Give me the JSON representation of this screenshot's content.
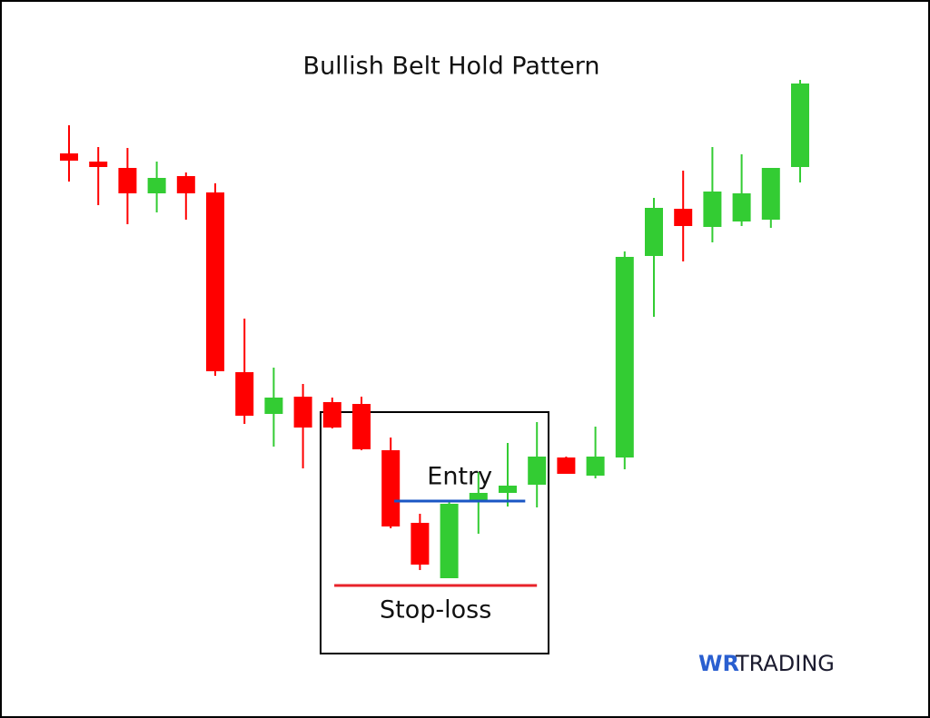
{
  "chart_data": {
    "type": "candlestick",
    "title": "Bullish Belt Hold Pattern",
    "categories": [
      null,
      null,
      null,
      null,
      null,
      null,
      null,
      null,
      null,
      null,
      null,
      null,
      null,
      null,
      null,
      null,
      null,
      null,
      null,
      null,
      null,
      null,
      null,
      null,
      null,
      null
    ],
    "series": [
      {
        "name": "open",
        "values": [
          622,
          613,
          606,
          578,
          597,
          579,
          381,
          335,
          354,
          348,
          346,
          295,
          215,
          154,
          240,
          248,
          257,
          287,
          267,
          287,
          509,
          561,
          541,
          547,
          549,
          607
        ]
      },
      {
        "name": "high",
        "values": [
          653,
          629,
          628,
          613,
          601,
          589,
          440,
          386,
          368,
          353,
          354,
          309,
          225,
          238,
          271,
          303,
          326,
          288,
          321,
          514,
          573,
          603,
          629,
          621,
          606,
          703
        ]
      },
      {
        "name": "low",
        "values": [
          591,
          565,
          544,
          557,
          549,
          377,
          324,
          299,
          275,
          319,
          295,
          209,
          163,
          154,
          203,
          233,
          232,
          269,
          264,
          274,
          442,
          503,
          524,
          542,
          540,
          590
        ]
      },
      {
        "name": "close",
        "values": [
          614,
          607,
          578,
          595,
          578,
          382,
          333,
          353,
          320,
          320,
          296,
          211,
          169,
          236,
          248,
          256,
          288,
          269,
          288,
          508,
          562,
          542,
          580,
          578,
          606,
          699
        ]
      }
    ],
    "up_color": "#33cc33",
    "down_color": "#ff0000",
    "ylim": [
      0,
      791
    ],
    "annotations": [
      {
        "label": "Entry",
        "value": 239,
        "color": "#1a56c4"
      },
      {
        "label": "Stop-loss",
        "value": 146,
        "color": "#e8232a"
      }
    ]
  },
  "brand": {
    "prefix": "WR",
    "name": "TRADING"
  }
}
